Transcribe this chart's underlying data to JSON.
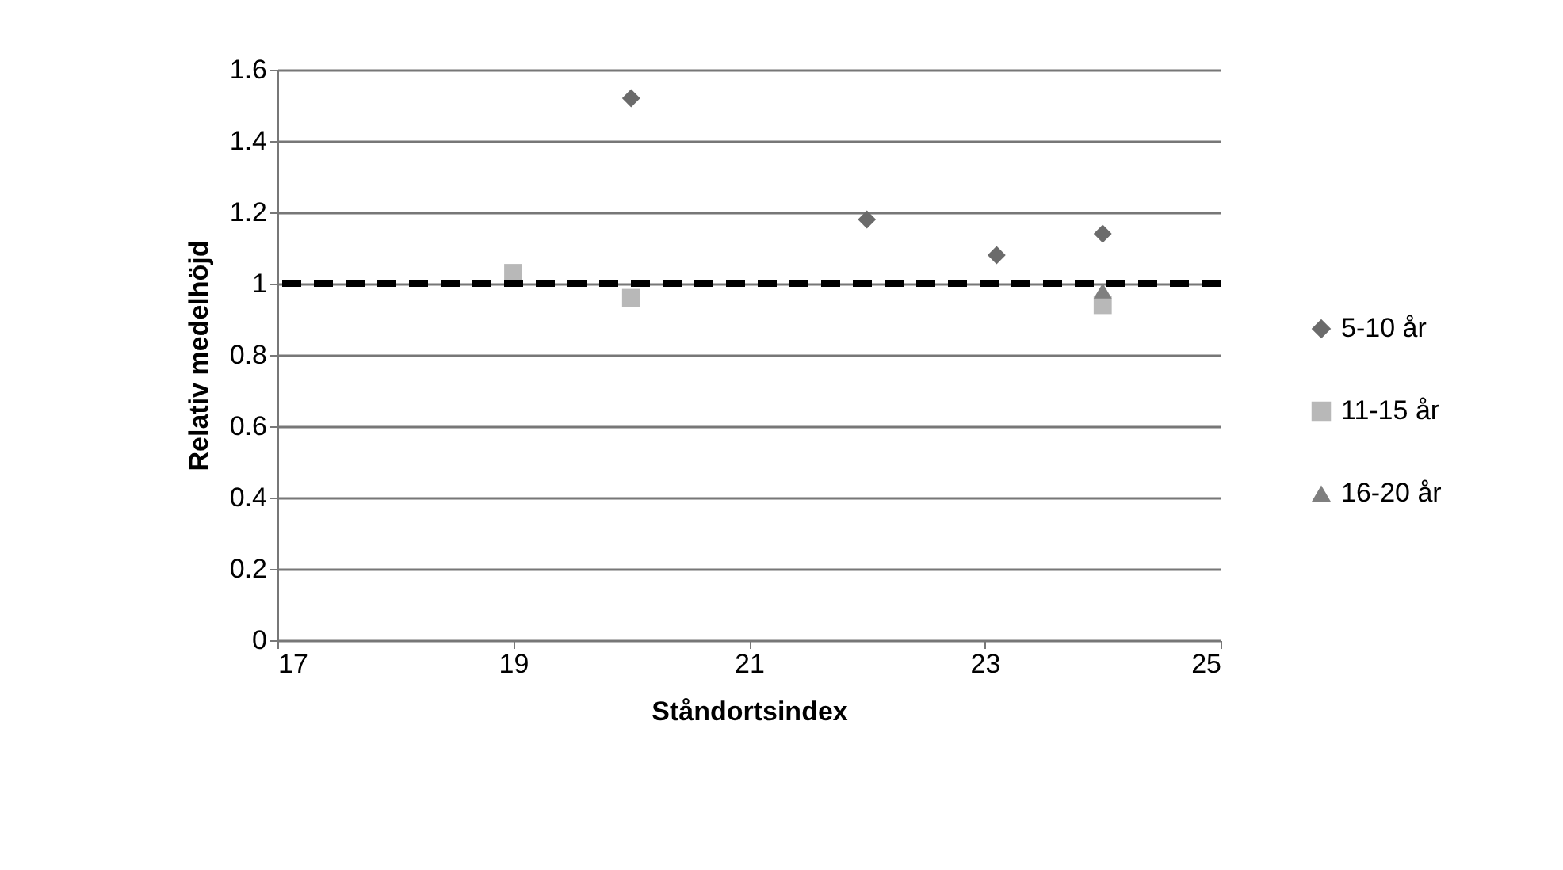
{
  "chart_data": {
    "type": "scatter",
    "xlabel": "Ståndortsindex",
    "ylabel": "Relativ medelhöjd",
    "xlim": [
      17,
      25
    ],
    "xticks": [
      17,
      19,
      21,
      23,
      25
    ],
    "ylim": [
      0,
      1.6
    ],
    "yticks": [
      0,
      0.2,
      0.4,
      0.6,
      0.8,
      1,
      1.2,
      1.4,
      1.6
    ],
    "grid": "y",
    "legend": "right",
    "series": [
      {
        "name": "5-10 år",
        "color": "#6b6b6b",
        "marker": "diamond",
        "x": [
          20,
          22,
          23.1,
          24
        ],
        "values": [
          1.52,
          1.18,
          1.08,
          1.14
        ]
      },
      {
        "name": "11-15 år",
        "color": "#b8b8b8",
        "marker": "square",
        "x": [
          19,
          20,
          24
        ],
        "values": [
          1.03,
          0.96,
          0.94
        ]
      },
      {
        "name": "16-20 år",
        "color": "#7f7f7f",
        "marker": "triangle",
        "x": [
          24
        ],
        "values": [
          0.98
        ]
      }
    ],
    "ref_lines": [
      {
        "axis": "y",
        "value": 1,
        "color": "#000000",
        "line_style": "dashed"
      }
    ]
  }
}
